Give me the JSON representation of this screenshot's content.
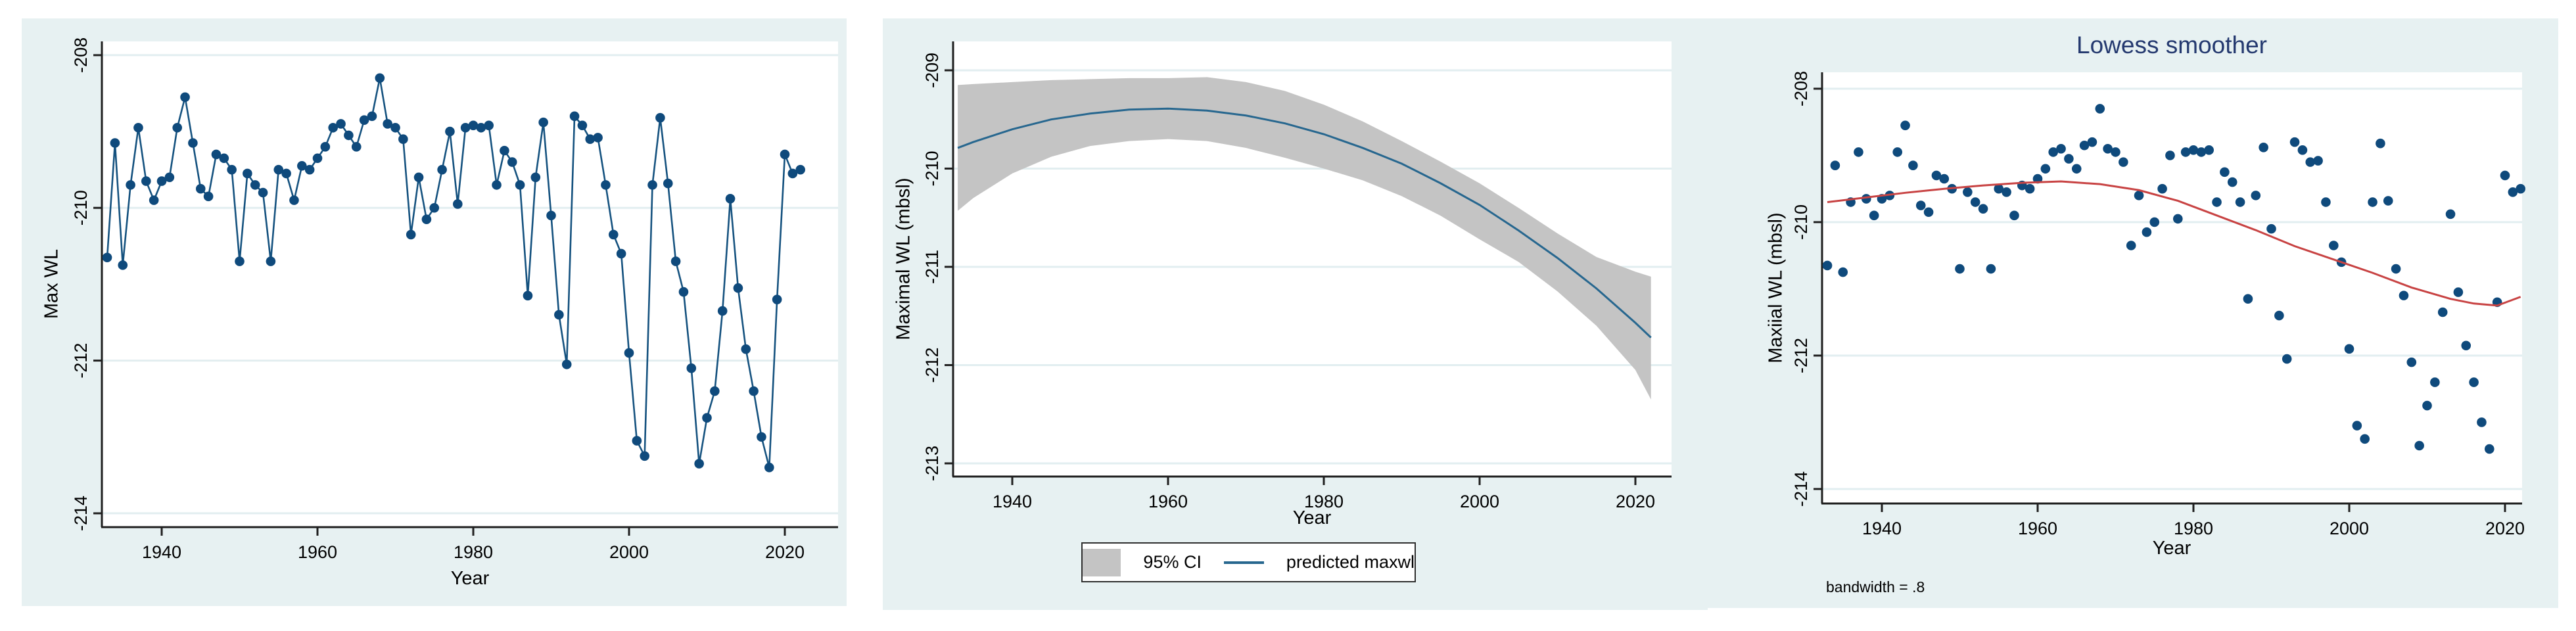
{
  "style": {
    "panel_bg": "#e7f1f2",
    "plot_bg": "#ffffff",
    "grid_color": "#e2eef0",
    "axis_color": "#1f1f1f",
    "marker_color": "#0f4a7c",
    "series_line_color": "#15527f",
    "fit_line_color": "#27678f",
    "ci_fill_color": "#c4c4c4",
    "lowess_line_color": "#c84343",
    "title_color": "#24396f",
    "tick_text_color": "#000000"
  },
  "chart_data": [
    {
      "type": "line",
      "title": "",
      "xlabel": "Year",
      "ylabel": "Max WL",
      "xticks": [
        1940,
        1960,
        1980,
        2000,
        2020
      ],
      "yticks": [
        -208,
        -210,
        -212,
        -214
      ],
      "xlim": [
        1933,
        2022
      ],
      "ylim": [
        -214.2,
        -207.8
      ],
      "grid": true,
      "connect_points": true,
      "years": [
        1933,
        1934,
        1935,
        1936,
        1937,
        1938,
        1939,
        1940,
        1941,
        1942,
        1943,
        1944,
        1945,
        1946,
        1947,
        1948,
        1949,
        1950,
        1951,
        1952,
        1953,
        1954,
        1955,
        1956,
        1957,
        1958,
        1959,
        1960,
        1961,
        1962,
        1963,
        1964,
        1965,
        1966,
        1967,
        1968,
        1969,
        1970,
        1971,
        1972,
        1973,
        1974,
        1975,
        1976,
        1977,
        1978,
        1979,
        1980,
        1981,
        1982,
        1983,
        1984,
        1985,
        1986,
        1987,
        1988,
        1989,
        1990,
        1991,
        1992,
        1993,
        1994,
        1995,
        1996,
        1997,
        1998,
        1999,
        2000,
        2001,
        2002,
        2003,
        2004,
        2005,
        2006,
        2007,
        2008,
        2009,
        2010,
        2011,
        2012,
        2013,
        2014,
        2015,
        2016,
        2017,
        2018,
        2019,
        2020,
        2021,
        2022
      ],
      "values": [
        -210.65,
        -209.15,
        -210.75,
        -209.7,
        -208.95,
        -209.65,
        -209.9,
        -209.65,
        -209.6,
        -208.95,
        -208.55,
        -209.15,
        -209.75,
        -209.85,
        -209.3,
        -209.35,
        -209.5,
        -210.7,
        -209.55,
        -209.7,
        -209.8,
        -210.7,
        -209.5,
        -209.55,
        -209.9,
        -209.45,
        -209.5,
        -209.35,
        -209.2,
        -208.95,
        -208.9,
        -209.05,
        -209.2,
        -208.85,
        -208.8,
        -208.3,
        -208.9,
        -208.95,
        -209.1,
        -210.35,
        -209.6,
        -210.15,
        -210.0,
        -209.5,
        -209.0,
        -209.95,
        -208.95,
        -208.92,
        -208.95,
        -208.92,
        -209.7,
        -209.25,
        -209.4,
        -209.7,
        -211.15,
        -209.6,
        -208.88,
        -210.1,
        -211.4,
        -212.05,
        -208.8,
        -208.92,
        -209.1,
        -209.08,
        -209.7,
        -210.35,
        -210.6,
        -211.9,
        -213.05,
        -213.25,
        -209.7,
        -208.82,
        -209.68,
        -210.7,
        -211.1,
        -212.1,
        -213.35,
        -212.75,
        -212.4,
        -211.35,
        -209.88,
        -211.05,
        -211.85,
        -212.4,
        -213.0,
        -213.4,
        -211.2,
        -209.3,
        -209.55,
        -209.5
      ]
    },
    {
      "type": "area",
      "title": "",
      "xlabel": "Year",
      "ylabel": "Maximal WL (mbsl)",
      "xticks": [
        1940,
        1960,
        1980,
        2000,
        2020
      ],
      "yticks": [
        -209,
        -210,
        -211,
        -212,
        -213
      ],
      "xlim": [
        1933,
        2022
      ],
      "ylim": [
        -213.1,
        -208.7
      ],
      "grid": true,
      "fit": {
        "years": [
          1933,
          1935,
          1940,
          1945,
          1950,
          1955,
          1960,
          1965,
          1970,
          1975,
          1980,
          1985,
          1990,
          1995,
          2000,
          2005,
          2010,
          2015,
          2020,
          2022
        ],
        "values": [
          -209.79,
          -209.73,
          -209.6,
          -209.5,
          -209.44,
          -209.4,
          -209.39,
          -209.41,
          -209.46,
          -209.54,
          -209.65,
          -209.79,
          -209.95,
          -210.15,
          -210.37,
          -210.63,
          -210.91,
          -211.22,
          -211.57,
          -211.72
        ],
        "upper": [
          -209.15,
          -209.14,
          -209.12,
          -209.1,
          -209.09,
          -209.08,
          -209.08,
          -209.07,
          -209.12,
          -209.21,
          -209.35,
          -209.52,
          -209.72,
          -209.93,
          -210.15,
          -210.4,
          -210.66,
          -210.9,
          -211.05,
          -211.1
        ],
        "lower": [
          -210.43,
          -210.3,
          -210.05,
          -209.88,
          -209.77,
          -209.72,
          -209.7,
          -209.72,
          -209.79,
          -209.89,
          -210.0,
          -210.12,
          -210.28,
          -210.48,
          -210.72,
          -210.95,
          -211.25,
          -211.6,
          -212.05,
          -212.35
        ]
      },
      "legend": [
        {
          "label": "95% CI",
          "swatch": "ci"
        },
        {
          "label": "predicted maxwl",
          "swatch": "line"
        }
      ]
    },
    {
      "type": "scatter",
      "title": "Lowess smoother",
      "xlabel": "Year",
      "ylabel": "Maxiial WL (mbsl)",
      "xticks": [
        1940,
        1960,
        1980,
        2000,
        2020
      ],
      "yticks": [
        -208,
        -210,
        -212,
        -214
      ],
      "xlim": [
        1933,
        2022
      ],
      "ylim": [
        -214.2,
        -207.8
      ],
      "grid": true,
      "note": "bandwidth = .8",
      "connect_points": false,
      "years": [
        1933,
        1934,
        1935,
        1936,
        1937,
        1938,
        1939,
        1940,
        1941,
        1942,
        1943,
        1944,
        1945,
        1946,
        1947,
        1948,
        1949,
        1950,
        1951,
        1952,
        1953,
        1954,
        1955,
        1956,
        1957,
        1958,
        1959,
        1960,
        1961,
        1962,
        1963,
        1964,
        1965,
        1966,
        1967,
        1968,
        1969,
        1970,
        1971,
        1972,
        1973,
        1974,
        1975,
        1976,
        1977,
        1978,
        1979,
        1980,
        1981,
        1982,
        1983,
        1984,
        1985,
        1986,
        1987,
        1988,
        1989,
        1990,
        1991,
        1992,
        1993,
        1994,
        1995,
        1996,
        1997,
        1998,
        1999,
        2000,
        2001,
        2002,
        2003,
        2004,
        2005,
        2006,
        2007,
        2008,
        2009,
        2010,
        2011,
        2012,
        2013,
        2014,
        2015,
        2016,
        2017,
        2018,
        2019,
        2020,
        2021,
        2022
      ],
      "values": [
        -210.65,
        -209.15,
        -210.75,
        -209.7,
        -208.95,
        -209.65,
        -209.9,
        -209.65,
        -209.6,
        -208.95,
        -208.55,
        -209.15,
        -209.75,
        -209.85,
        -209.3,
        -209.35,
        -209.5,
        -210.7,
        -209.55,
        -209.7,
        -209.8,
        -210.7,
        -209.5,
        -209.55,
        -209.9,
        -209.45,
        -209.5,
        -209.35,
        -209.2,
        -208.95,
        -208.9,
        -209.05,
        -209.2,
        -208.85,
        -208.8,
        -208.3,
        -208.9,
        -208.95,
        -209.1,
        -210.35,
        -209.6,
        -210.15,
        -210.0,
        -209.5,
        -209.0,
        -209.95,
        -208.95,
        -208.92,
        -208.95,
        -208.92,
        -209.7,
        -209.25,
        -209.4,
        -209.7,
        -211.15,
        -209.6,
        -208.88,
        -210.1,
        -211.4,
        -212.05,
        -208.8,
        -208.92,
        -209.1,
        -209.08,
        -209.7,
        -210.35,
        -210.6,
        -211.9,
        -213.05,
        -213.25,
        -209.7,
        -208.82,
        -209.68,
        -210.7,
        -211.1,
        -212.1,
        -213.35,
        -212.75,
        -212.4,
        -211.35,
        -209.88,
        -211.05,
        -211.85,
        -212.4,
        -213.0,
        -213.4,
        -211.2,
        -209.3,
        -209.55,
        -209.5
      ],
      "lowess": {
        "years": [
          1933,
          1938,
          1943,
          1948,
          1953,
          1958,
          1963,
          1968,
          1973,
          1978,
          1983,
          1988,
          1993,
          1998,
          2003,
          2008,
          2013,
          2016,
          2019,
          2022
        ],
        "values": [
          -209.7,
          -209.63,
          -209.56,
          -209.5,
          -209.45,
          -209.41,
          -209.39,
          -209.43,
          -209.52,
          -209.68,
          -209.9,
          -210.12,
          -210.36,
          -210.56,
          -210.76,
          -210.98,
          -211.15,
          -211.22,
          -211.25,
          -211.12
        ]
      }
    }
  ]
}
